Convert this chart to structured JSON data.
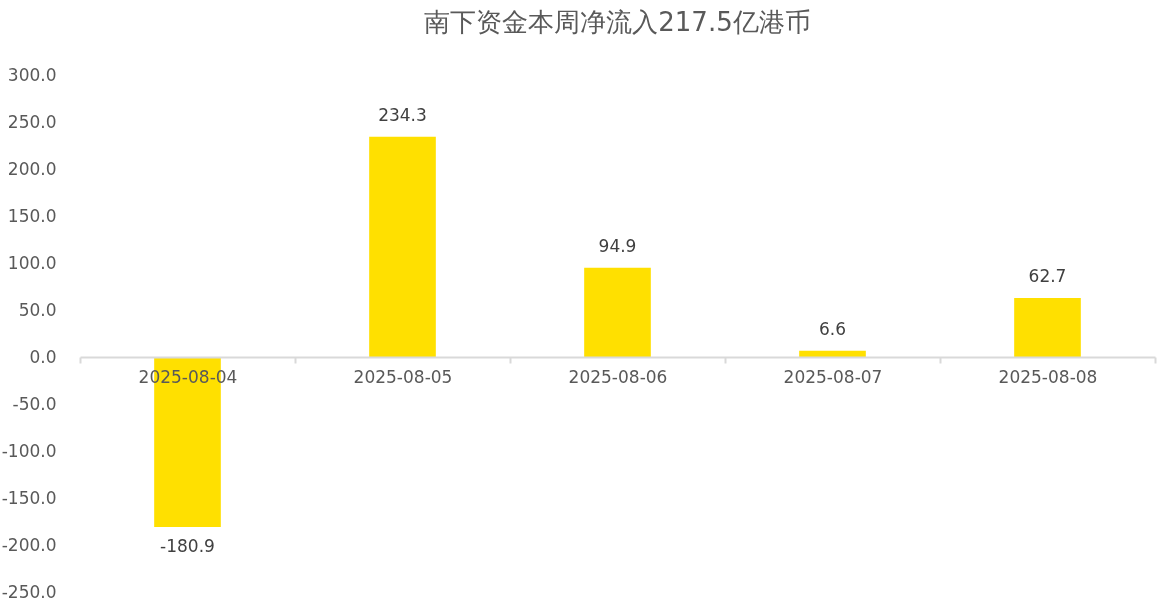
{
  "chart_data": {
    "type": "bar",
    "title": "南下资金本周净流入217.5亿港币",
    "categories": [
      "2025-08-04",
      "2025-08-05",
      "2025-08-06",
      "2025-08-07",
      "2025-08-08"
    ],
    "values": [
      -180.9,
      234.3,
      94.9,
      6.6,
      62.7
    ],
    "color": "#ffe000",
    "ylim": [
      -250,
      300
    ],
    "yticks": [
      {
        "value": -250,
        "label": "-250.0"
      },
      {
        "value": -200,
        "label": "-200.0"
      },
      {
        "value": -150,
        "label": "-150.0"
      },
      {
        "value": -100,
        "label": "-100.0"
      },
      {
        "value": -50,
        "label": "-50.0"
      },
      {
        "value": 0,
        "label": "0.0"
      },
      {
        "value": 50,
        "label": "50.0"
      },
      {
        "value": 100,
        "label": "100.0"
      },
      {
        "value": 150,
        "label": "150.0"
      },
      {
        "value": 200,
        "label": "200.0"
      },
      {
        "value": 250,
        "label": "250.0"
      },
      {
        "value": 300,
        "label": "300.0"
      }
    ],
    "data_labels": true
  }
}
